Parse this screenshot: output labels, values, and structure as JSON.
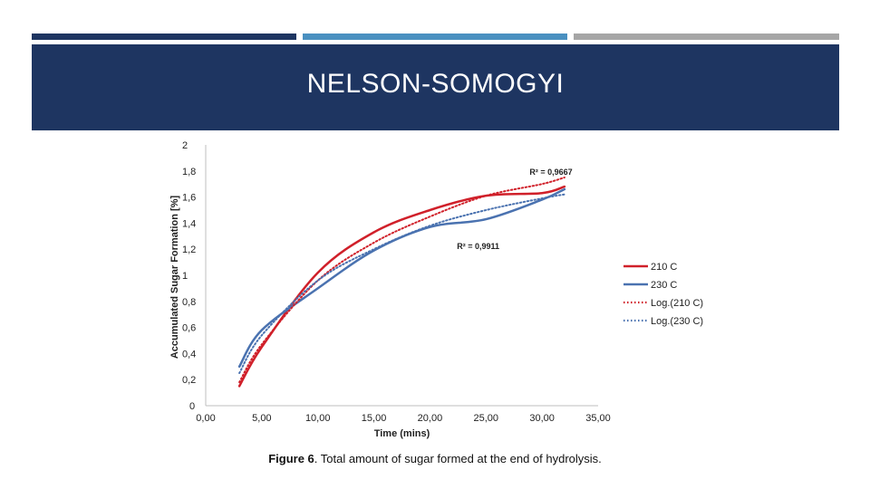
{
  "slide": {
    "title": "NELSON-SOMOGYI",
    "caption_bold": "Figure 6",
    "caption_text": ". Total amount of sugar formed at the end of hydrolysis.",
    "topbar_colors": [
      "#1e3561",
      "#4a90c0",
      "#a6a6a6"
    ],
    "banner_color": "#1e3561"
  },
  "chart_data": {
    "type": "line",
    "xlabel": "Time (mins)",
    "ylabel": "Accumulated Sugar Formation [%]",
    "xlim": [
      0,
      35
    ],
    "ylim": [
      0,
      2
    ],
    "x_ticks": [
      "0,00",
      "5,00",
      "10,00",
      "15,00",
      "20,00",
      "25,00",
      "30,00",
      "35,00"
    ],
    "x_tick_values": [
      0,
      5,
      10,
      15,
      20,
      25,
      30,
      35
    ],
    "y_ticks": [
      "0",
      "0,2",
      "0,4",
      "0,6",
      "0,8",
      "1",
      "1,2",
      "1,4",
      "1,6",
      "1,8",
      "2"
    ],
    "y_tick_values": [
      0,
      0.2,
      0.4,
      0.6,
      0.8,
      1.0,
      1.2,
      1.4,
      1.6,
      1.8,
      2.0
    ],
    "grid": false,
    "legend_position": "right",
    "series": [
      {
        "name": "210 C",
        "color": "#d0202a",
        "style": "solid",
        "x": [
          3,
          5,
          10,
          15,
          20,
          25,
          30,
          32
        ],
        "y": [
          0.15,
          0.45,
          1.02,
          1.33,
          1.5,
          1.61,
          1.63,
          1.68
        ]
      },
      {
        "name": "230 C",
        "color": "#4a72b0",
        "style": "solid",
        "x": [
          3,
          5,
          10,
          15,
          20,
          25,
          30,
          32
        ],
        "y": [
          0.3,
          0.58,
          0.9,
          1.19,
          1.37,
          1.43,
          1.58,
          1.66
        ]
      },
      {
        "name": "Log.(210 C)",
        "color": "#d0202a",
        "style": "dotted",
        "x": [
          3,
          5,
          10,
          15,
          20,
          25,
          30,
          32
        ],
        "y": [
          0.18,
          0.47,
          0.96,
          1.25,
          1.45,
          1.61,
          1.7,
          1.75
        ]
      },
      {
        "name": "Log.(230 C)",
        "color": "#4a72b0",
        "style": "dotted",
        "x": [
          3,
          5,
          10,
          15,
          20,
          25,
          30,
          32
        ],
        "y": [
          0.25,
          0.54,
          0.96,
          1.2,
          1.38,
          1.5,
          1.59,
          1.62
        ]
      }
    ],
    "annotations": [
      {
        "text": "R² = 0,9667",
        "x": 30.8,
        "y": 1.8
      },
      {
        "text": "R² = 0,9911",
        "x": 24.3,
        "y": 1.23
      }
    ]
  }
}
